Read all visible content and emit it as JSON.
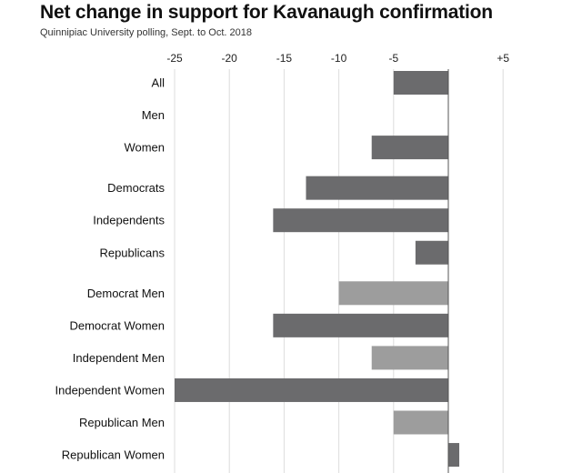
{
  "title": "Net change in support for Kavanaugh confirmation",
  "subtitle": "Quinnipiac University polling, Sept. to Oct. 2018",
  "colors": {
    "dark_bar": "#6b6b6d",
    "light_bar": "#9d9d9d",
    "axis": "#555555",
    "grid": "#dcdcdc"
  },
  "chart_data": {
    "type": "bar",
    "orientation": "horizontal",
    "title": "Net change in support for Kavanaugh confirmation",
    "subtitle": "Quinnipiac University polling, Sept. to Oct. 2018",
    "xlim": [
      -25,
      8
    ],
    "x_ticks": [
      -25,
      -20,
      -15,
      -10,
      -5,
      5
    ],
    "x_tick_labels": [
      "-25",
      "-20",
      "-15",
      "-10",
      "-5",
      "+5"
    ],
    "tick_position": "top",
    "grid": true,
    "categories": [
      "All",
      "Men",
      "Women",
      "Democrats",
      "Independents",
      "Republicans",
      "Democrat Men",
      "Democrat Women",
      "Independent Men",
      "Independent Women",
      "Republican Men",
      "Republican Women"
    ],
    "values": [
      -5,
      0,
      -7,
      -13,
      -16,
      -3,
      -10,
      -16,
      -7,
      -25,
      -5,
      1
    ],
    "shade": [
      "dark",
      "dark",
      "dark",
      "dark",
      "dark",
      "dark",
      "light",
      "dark",
      "light",
      "dark",
      "light",
      "dark"
    ]
  }
}
